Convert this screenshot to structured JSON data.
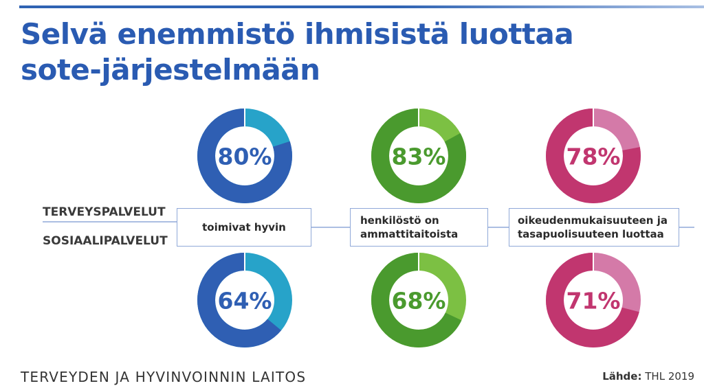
{
  "title": "Selvä enemmistö ihmisistä luottaa sote-järjestelmään",
  "chart_data": {
    "type": "donut",
    "rows": [
      "TERVEYSPALVELUT",
      "SOSIAALIPALVELUT"
    ],
    "categories": [
      {
        "label": "toimivat hyvin",
        "color_dark": "#2f5fb3",
        "color_light": "#27a3c9"
      },
      {
        "label": "henkilöstö on ammattitaitoista",
        "color_dark": "#4a9a2e",
        "color_light": "#7cc043"
      },
      {
        "label": "oikeudenmukaisuuteen ja tasapuolisuuteen luottaa",
        "color_dark": "#c1366f",
        "color_light": "#d47aa8"
      }
    ],
    "series": [
      {
        "row": "TERVEYSPALVELUT",
        "values": [
          80,
          83,
          78
        ],
        "labels": [
          "80%",
          "83%",
          "78%"
        ]
      },
      {
        "row": "SOSIAALIPALVELUT",
        "values": [
          64,
          68,
          71
        ],
        "labels": [
          "64%",
          "68%",
          "71%"
        ]
      }
    ]
  },
  "footer": {
    "organization": "TERVEYDEN JA HYVINVOINNIN LAITOS",
    "source_label": "Lähde:",
    "source_value": "THL 2019"
  }
}
